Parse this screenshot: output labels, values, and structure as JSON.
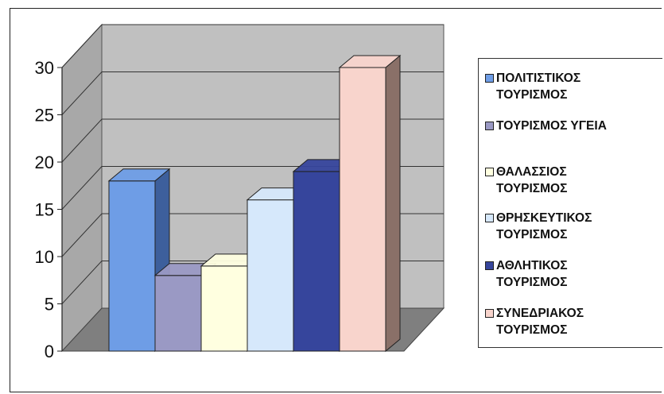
{
  "chart_data": {
    "type": "bar",
    "categories": [
      "ΠΟΛΙΤΙΣΤΙΚΟΣ ΤΟΥΡΙΣΜΟΣ",
      "ΤΟΥΡΙΣΜΟΣ ΥΓΕΙΑ",
      "ΘΑΛΑΣΣΙΟΣ ΤΟΥΡΙΣΜΟΣ",
      "ΘΡΗΣΚΕΥΤΙΚΟΣ ΤΟΥΡΙΣΜΟΣ",
      "ΑΘΛΗΤΙΚΟΣ ΤΟΥΡΙΣΜΟΣ",
      "ΣΥΝΕΔΡΙΑΚΟΣ ΤΟΥΡΙΣΜΟΣ"
    ],
    "values": [
      18,
      8,
      9,
      16,
      19,
      30
    ],
    "colors": [
      "#6e9de6",
      "#9a99c4",
      "#ffffe0",
      "#d6e8fb",
      "#36459c",
      "#f8d4cc"
    ],
    "side_colors": [
      "#3d5f9c",
      "#4e4e78",
      "#a9a98b",
      "#8a98ad",
      "#1c2660",
      "#8a7068"
    ],
    "ylim": [
      0,
      30
    ],
    "yticks": [
      "0",
      "5",
      "10",
      "15",
      "20",
      "25",
      "30"
    ],
    "style": "3d-clustered-column",
    "grid": true,
    "legend_position": "right"
  },
  "legend": {
    "items": [
      {
        "label": "ΠΟΛΙΤΙΣΤΙΚΟΣ\nΤΟΥΡΙΣΜΟΣ",
        "color": "#6e9de6"
      },
      {
        "label": "ΤΟΥΡΙΣΜΟΣ ΥΓΕΙΑ",
        "color": "#9a99c4"
      },
      {
        "label": "ΘΑΛΑΣΣΙΟΣ\nΤΟΥΡΙΣΜΟΣ",
        "color": "#ffffe0"
      },
      {
        "label": "ΘΡΗΣΚΕΥΤΙΚΟΣ\nΤΟΥΡΙΣΜΟΣ",
        "color": "#d6e8fb"
      },
      {
        "label": "ΑΘΛΗΤΙΚΟΣ\nΤΟΥΡΙΣΜΟΣ",
        "color": "#36459c"
      },
      {
        "label": "ΣΥΝΕΔΡΙΑΚΟΣ\nΤΟΥΡΙΣΜΟΣ",
        "color": "#f8d4cc"
      }
    ]
  }
}
